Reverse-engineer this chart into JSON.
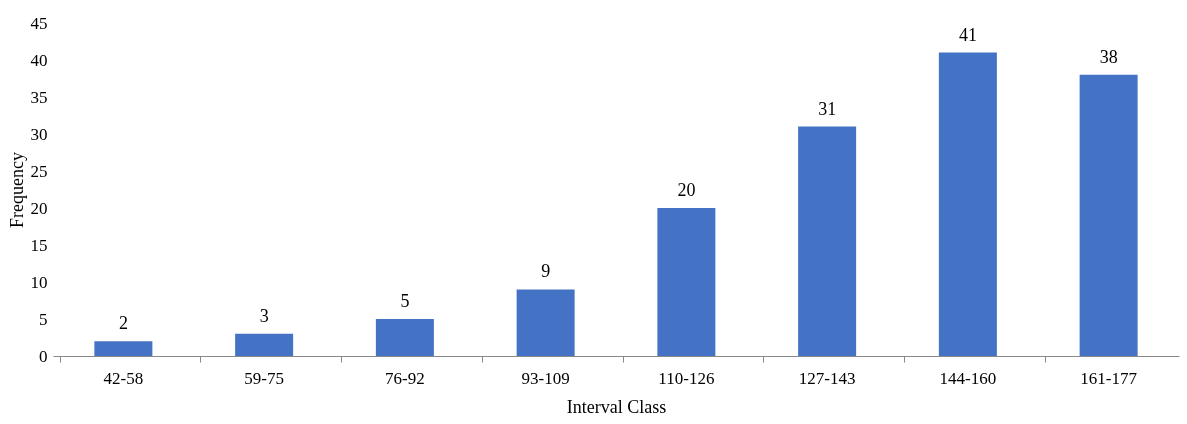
{
  "chart_data": {
    "type": "bar",
    "xlabel": "Interval Class",
    "ylabel": "Frequency",
    "categories": [
      "42-58",
      "59-75",
      "76-92",
      "93-109",
      "110-126",
      "127-143",
      "144-160",
      "161-177"
    ],
    "values": [
      2,
      3,
      5,
      9,
      20,
      31,
      41,
      38
    ],
    "color": "#4472c4",
    "ylim": [
      0,
      45
    ],
    "yticks": [
      0,
      5,
      10,
      15,
      20,
      25,
      30,
      35,
      40,
      45
    ],
    "grid": false,
    "data_labels": true
  }
}
